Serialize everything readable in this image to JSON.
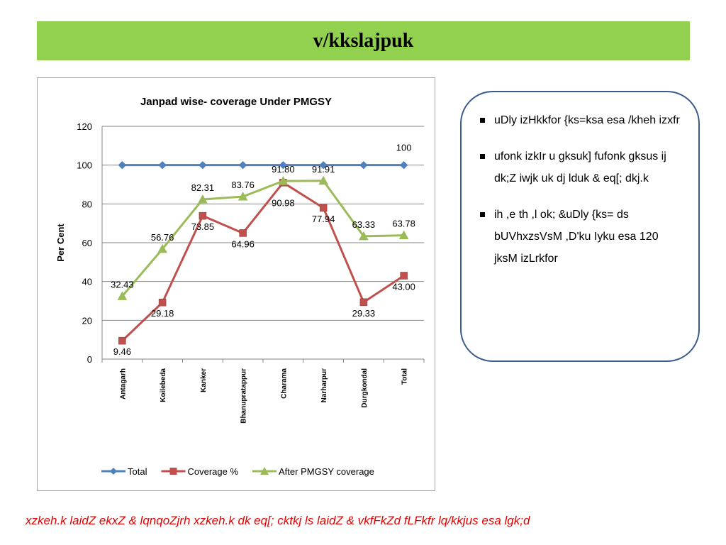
{
  "page": {
    "title": "v/kkslajpuk",
    "footer": "xzkeh.k laidZ ekxZ & lqnqoZjrh xzkeh.k dk eq[; cktkj ls laidZ & vkfFkZd fLFkfr lq/kkjus esa lgk;d"
  },
  "notes": [
    "uDly izHkkfor {ks=ksa esa /kheh izxfr",
    "ufonk izkIr u gksuk] fufonk gksus ij dk;Z iwjk uk dj lduk & eq[; dkj.k",
    "ih ,e th ,l ok; &uDly {ks= ds bUVhxzsVsM ,D'ku Iyku esa 120 jksM izLrkfor"
  ],
  "colors": {
    "title_bar": "#92d050",
    "note_border": "#3b5a8c",
    "footer_text": "#e60000"
  },
  "chart_data": {
    "type": "line",
    "title": "Janpad wise- coverage Under PMGSY",
    "ylabel": "Per Cent",
    "xlabel": "",
    "ylim": [
      0,
      120
    ],
    "yticks": [
      0,
      20,
      40,
      60,
      80,
      100,
      120
    ],
    "grid": true,
    "legend_position": "bottom",
    "categories": [
      "Antagarh",
      "Koilebeda",
      "Kanker",
      "Bhanupratappur",
      "Charama",
      "Narharpur",
      "Durgkondal",
      "Total"
    ],
    "series": [
      {
        "name": "Total",
        "color": "#4f81bd",
        "marker": "diamond",
        "values": [
          100,
          100,
          100,
          100,
          100,
          100,
          100,
          100
        ],
        "labels": [
          "",
          "",
          "",
          "",
          "",
          "",
          "",
          "100"
        ]
      },
      {
        "name": "Coverage %",
        "color": "#c0504d",
        "marker": "square",
        "values": [
          9.46,
          29.18,
          73.85,
          64.96,
          90.98,
          77.94,
          29.33,
          43.0
        ],
        "labels": [
          "9.46",
          "29.18",
          "73.85",
          "64.96",
          "90.98",
          "77.94",
          "29.33",
          "43.00"
        ]
      },
      {
        "name": "After PMGSY coverage",
        "color": "#9bbb59",
        "marker": "triangle",
        "values": [
          32.43,
          56.76,
          82.31,
          83.76,
          91.8,
          91.91,
          63.33,
          63.78
        ],
        "labels": [
          "32.43",
          "56.76",
          "82.31",
          "83.76",
          "91.80",
          "91.91",
          "63.33",
          "63.78"
        ]
      }
    ]
  }
}
